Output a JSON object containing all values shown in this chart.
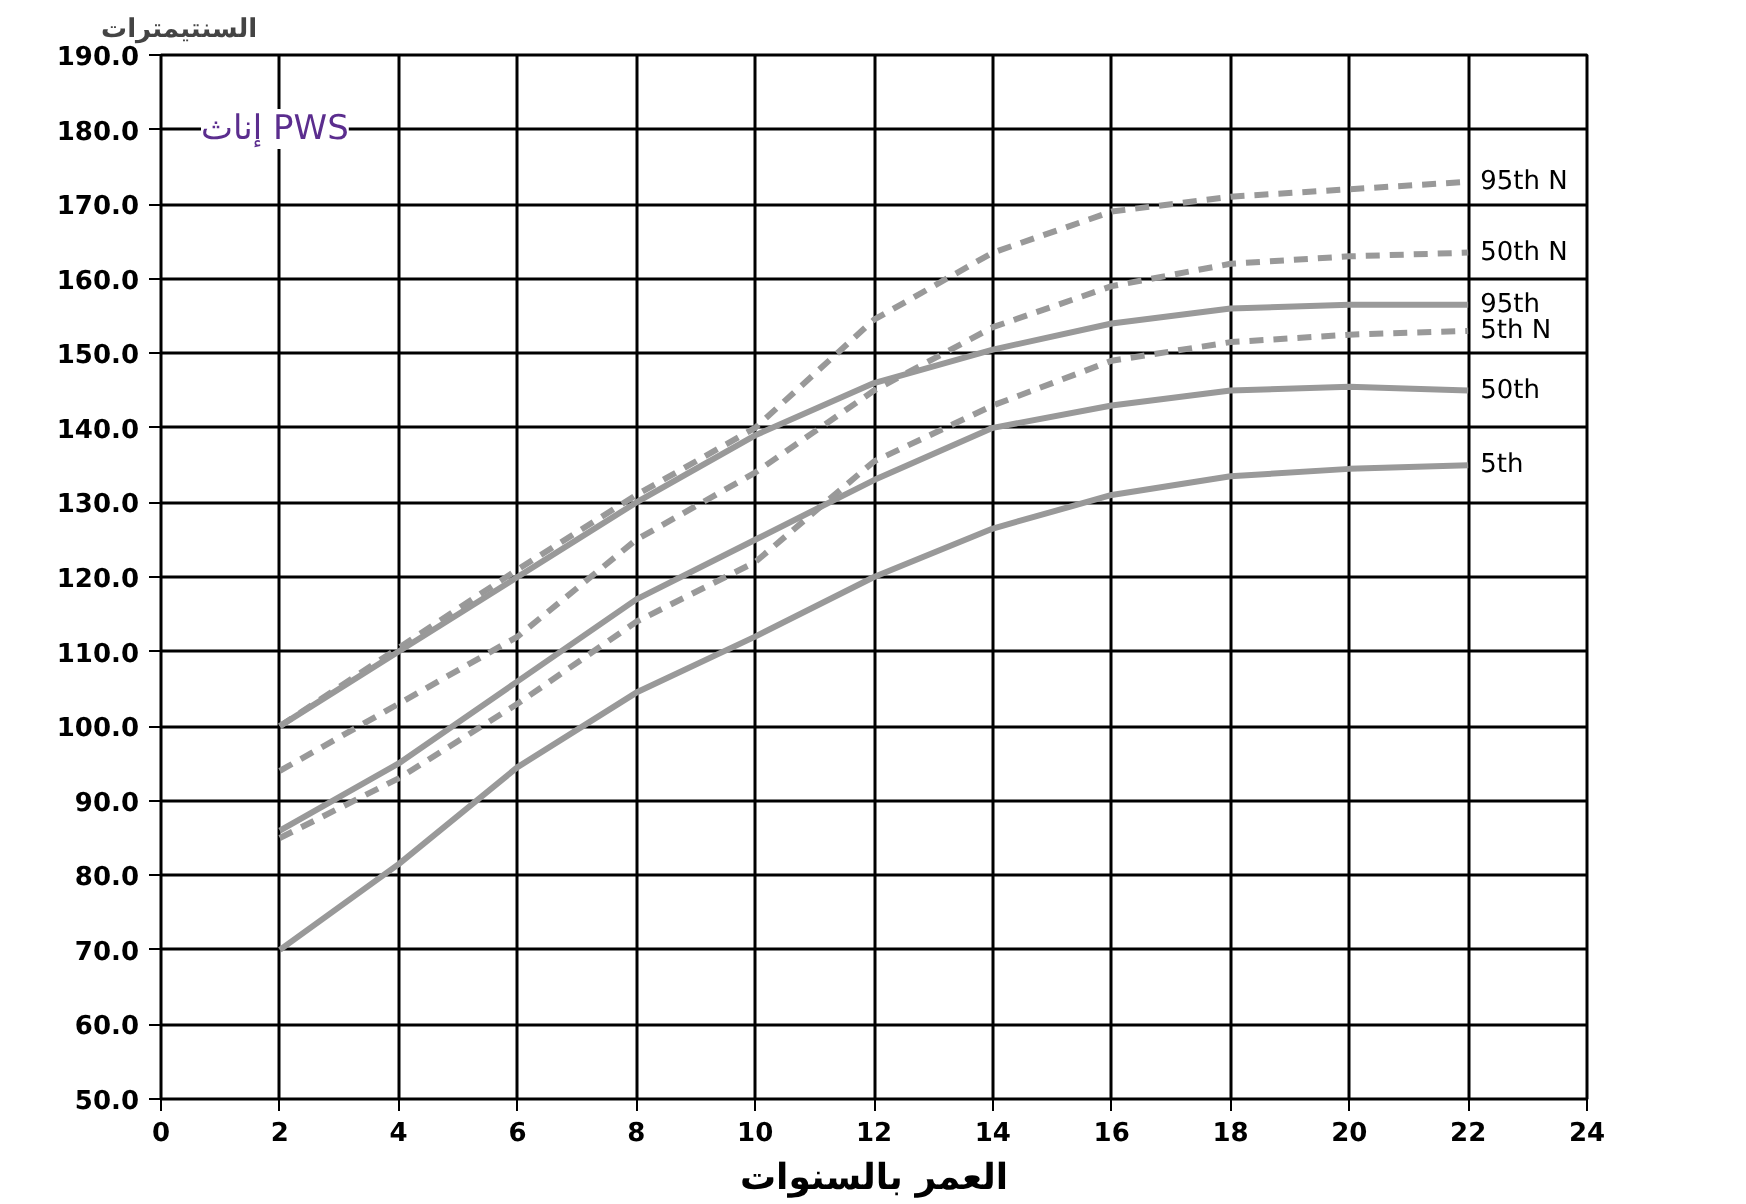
{
  "chart_data": {
    "type": "line",
    "xlabel": "العمر بالسنوات",
    "ylabel": "السنتيمترات",
    "annotations": [
      "إناث PWS"
    ],
    "x": [
      2,
      4,
      6,
      8,
      10,
      12,
      14,
      16,
      18,
      20,
      22
    ],
    "series": [
      {
        "name": "95th N",
        "color": "#999999",
        "line_style": "dashed",
        "values": [
          100,
          110.5,
          121,
          131,
          140,
          154.5,
          163.5,
          169,
          171,
          172,
          173
        ]
      },
      {
        "name": "50th N",
        "color": "#999999",
        "line_style": "dashed",
        "values": [
          94,
          103,
          112,
          125,
          134,
          145,
          153.5,
          159,
          162,
          163,
          163.5
        ]
      },
      {
        "name": "95th",
        "color": "#999999",
        "line_style": "solid",
        "values": [
          100,
          110,
          120,
          130,
          139,
          146,
          150.5,
          154,
          156,
          156.5,
          156.5
        ]
      },
      {
        "name": "5th N",
        "color": "#999999",
        "line_style": "dashed",
        "values": [
          85,
          93,
          103,
          114,
          122,
          135.5,
          143,
          149,
          151.5,
          152.5,
          153
        ]
      },
      {
        "name": "50th",
        "color": "#999999",
        "line_style": "solid",
        "values": [
          86,
          95,
          106,
          117,
          125,
          133,
          140,
          143,
          145,
          145.5,
          145
        ]
      },
      {
        "name": "5th",
        "color": "#999999",
        "line_style": "solid",
        "values": [
          70,
          81.5,
          94.5,
          104.5,
          112,
          120,
          126.5,
          131,
          133.5,
          134.5,
          135
        ]
      }
    ],
    "xlim": [
      0,
      24
    ],
    "ylim": [
      50,
      190
    ],
    "xticks": [
      0,
      2,
      4,
      6,
      8,
      10,
      12,
      14,
      16,
      18,
      20,
      22,
      24
    ],
    "yticks": [
      {
        "value": 50,
        "label": "50.0"
      },
      {
        "value": 60,
        "label": "60.0"
      },
      {
        "value": 70,
        "label": "70.0"
      },
      {
        "value": 80,
        "label": "80.0"
      },
      {
        "value": 90,
        "label": "90.0"
      },
      {
        "value": 100,
        "label": "100.0"
      },
      {
        "value": 110,
        "label": "110.0"
      },
      {
        "value": 120,
        "label": "120.0"
      },
      {
        "value": 130,
        "label": "130.0"
      },
      {
        "value": 140,
        "label": "140.0"
      },
      {
        "value": 150,
        "label": "150.0"
      },
      {
        "value": 160,
        "label": "160.0"
      },
      {
        "value": 170,
        "label": "170.0"
      },
      {
        "value": 180,
        "label": "180.0"
      },
      {
        "value": 190,
        "label": "190.0"
      }
    ],
    "grid": true,
    "marker": "none"
  }
}
